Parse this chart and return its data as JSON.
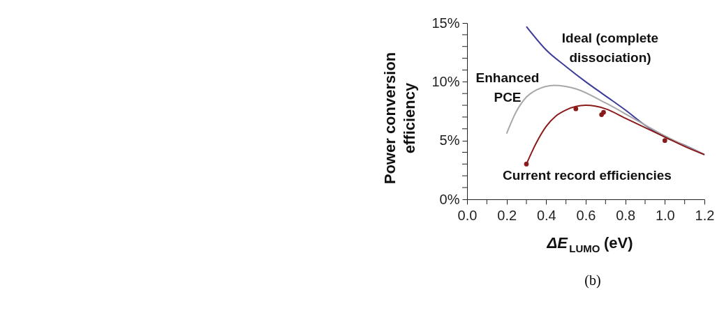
{
  "chart_data": {
    "type": "line",
    "xlabel": "ΔE$_{LUMO}$ (eV)",
    "ylabel": "Power conversion efficiency",
    "xlim": [
      0,
      1.2
    ],
    "ylim": [
      0,
      15
    ],
    "xticks": [
      {
        "value": 0,
        "label": "0.0"
      },
      {
        "value": 0.1,
        "label": null
      },
      {
        "value": 0.2,
        "label": "0.2"
      },
      {
        "value": 0.3,
        "label": null
      },
      {
        "value": 0.4,
        "label": "0.4"
      },
      {
        "value": 0.5,
        "label": null
      },
      {
        "value": 0.6,
        "label": "0.6"
      },
      {
        "value": 0.7,
        "label": null
      },
      {
        "value": 0.8,
        "label": "0.8"
      },
      {
        "value": 0.9,
        "label": null
      },
      {
        "value": 1,
        "label": "1.0"
      },
      {
        "value": 1.1,
        "label": null
      },
      {
        "value": 1.2,
        "label": "1.2"
      }
    ],
    "yticks": [
      {
        "value": 0,
        "label": "0%"
      },
      {
        "value": 1,
        "label": null
      },
      {
        "value": 2,
        "label": null
      },
      {
        "value": 3,
        "label": null
      },
      {
        "value": 4,
        "label": null
      },
      {
        "value": 5,
        "label": "5%"
      },
      {
        "value": 6,
        "label": null
      },
      {
        "value": 7,
        "label": null
      },
      {
        "value": 8,
        "label": null
      },
      {
        "value": 9,
        "label": null
      },
      {
        "value": 10,
        "label": "10%"
      },
      {
        "value": 11,
        "label": null
      },
      {
        "value": 12,
        "label": null
      },
      {
        "value": 13,
        "label": null
      },
      {
        "value": 14,
        "label": null
      },
      {
        "value": 15,
        "label": "15%"
      }
    ],
    "grid": false,
    "line_style": "solid",
    "series": [
      {
        "name": "Ideal (complete dissociation)",
        "color": "#3b3b9a",
        "x": [
          0.3,
          0.4,
          0.5,
          0.6,
          0.7,
          0.8,
          0.9,
          1.0,
          1.1,
          1.2
        ],
        "values": [
          14.7,
          12.7,
          11.3,
          10.0,
          8.8,
          7.6,
          6.3,
          5.3,
          4.6,
          3.8
        ]
      },
      {
        "name": "Enhanced PCE",
        "color": "#a8a8a8",
        "x": [
          0.2,
          0.25,
          0.3,
          0.35,
          0.44,
          0.55,
          0.7,
          0.85,
          1.0,
          1.2
        ],
        "values": [
          5.6,
          7.5,
          8.7,
          9.3,
          9.7,
          9.4,
          8.2,
          6.8,
          5.4,
          3.8
        ]
      },
      {
        "name": "Current record efficiencies",
        "color": "#8b1a1a",
        "x": [
          0.3,
          0.35,
          0.4,
          0.45,
          0.5,
          0.6,
          0.7,
          0.8,
          0.9,
          1.0,
          1.1,
          1.2
        ],
        "values": [
          3.0,
          4.8,
          6.2,
          7.1,
          7.6,
          8.0,
          7.7,
          6.9,
          6.1,
          5.3,
          4.5,
          3.8
        ]
      },
      {
        "type": "scatter",
        "marker": "circle",
        "color": "#8b1a1a",
        "x": [
          0.3,
          0.55,
          0.68,
          0.69,
          1.0
        ],
        "values": [
          3.0,
          7.7,
          7.2,
          7.4,
          5.0
        ]
      }
    ],
    "annotations": [
      "(b)"
    ]
  }
}
